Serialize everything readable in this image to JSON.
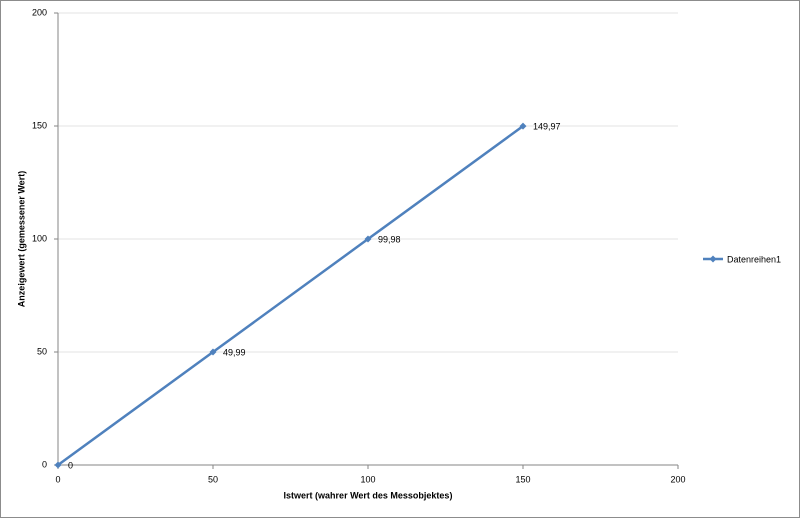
{
  "chart_data": {
    "type": "scatter-line",
    "xlabel": "Istwert (wahrer Wert des Messobjektes)",
    "ylabel": "Anzeigewert (gemessener Wert)",
    "x": [
      0,
      50,
      100,
      150
    ],
    "series": [
      {
        "name": "Datenreihen1",
        "color": "#4f81bd",
        "values": [
          0,
          49.99,
          99.98,
          149.97
        ],
        "value_labels": [
          "0",
          "49,99",
          "99,98",
          "149,97"
        ]
      }
    ],
    "xlim": [
      0,
      200
    ],
    "xticks": [
      0,
      50,
      100,
      150,
      200
    ],
    "ylim": [
      0,
      200
    ],
    "yticks": [
      0,
      50,
      100,
      150,
      200
    ],
    "grid": true,
    "legend": "right"
  }
}
